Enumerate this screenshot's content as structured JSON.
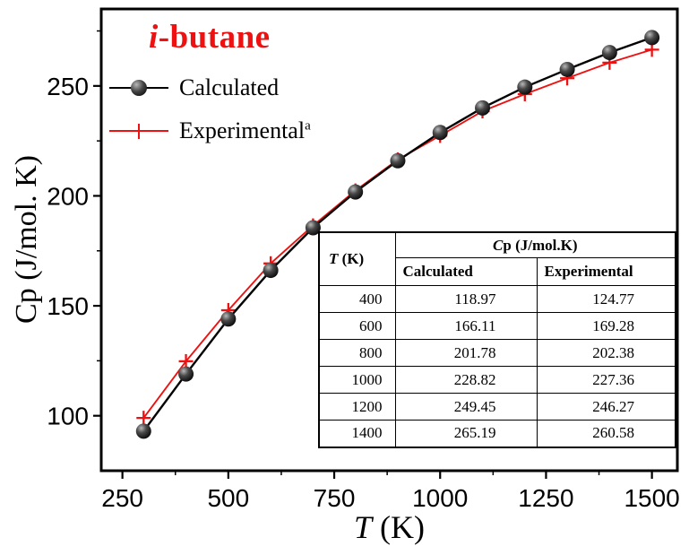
{
  "title": {
    "italic_part": "i",
    "rest": "-butane",
    "color": "#ee1111"
  },
  "axes": {
    "x": {
      "symbol": "T",
      "rest": " (K)"
    },
    "y": {
      "label": "Cp (J/mol. K)"
    }
  },
  "legend": {
    "items": [
      {
        "label": "Calculated",
        "superscript": "",
        "marker": "sphere",
        "color": "#000000"
      },
      {
        "label": "Experimental",
        "superscript": "a",
        "marker": "plus",
        "color": "#ee1111"
      }
    ]
  },
  "chart_data": {
    "type": "line",
    "title": "i-butane",
    "xlabel": "T (K)",
    "ylabel": "Cp (J/mol. K)",
    "x": [
      300,
      400,
      500,
      600,
      700,
      800,
      900,
      1000,
      1100,
      1200,
      1300,
      1400,
      1500
    ],
    "series": [
      {
        "name": "Calculated",
        "color": "#000000",
        "marker": "sphere",
        "values": [
          93.0,
          118.97,
          144.0,
          166.11,
          185.5,
          201.78,
          216.0,
          228.82,
          240.0,
          249.45,
          257.5,
          265.19,
          272.0
        ]
      },
      {
        "name": "Experimental",
        "color": "#ee1111",
        "marker": "plus",
        "values": [
          99.0,
          124.77,
          148.0,
          169.28,
          186.5,
          202.38,
          216.5,
          227.36,
          238.5,
          246.27,
          253.5,
          260.58,
          266.5
        ]
      }
    ],
    "xlim": [
      200,
      1560
    ],
    "ylim": [
      75,
      285
    ],
    "xticks": [
      250,
      500,
      750,
      1000,
      1250,
      1500
    ],
    "xminor": [
      375,
      625,
      875,
      1125,
      1375
    ],
    "yticks": [
      100,
      150,
      200,
      250
    ],
    "yminor": [
      125,
      175,
      225,
      275
    ],
    "grid": false,
    "legend_position": "upper-left"
  },
  "table": {
    "t_header_italic": "T",
    "t_header_rest": " (K)",
    "group_header_italic": "C",
    "group_header_rest": "p (J/mol.K)",
    "col_headers": [
      "Calculated",
      "Experimental"
    ],
    "rows": [
      [
        "400",
        "118.97",
        "124.77"
      ],
      [
        "600",
        "166.11",
        "169.28"
      ],
      [
        "800",
        "201.78",
        "202.38"
      ],
      [
        "1000",
        "228.82",
        "227.36"
      ],
      [
        "1200",
        "249.45",
        "246.27"
      ],
      [
        "1400",
        "265.19",
        "260.58"
      ]
    ]
  }
}
